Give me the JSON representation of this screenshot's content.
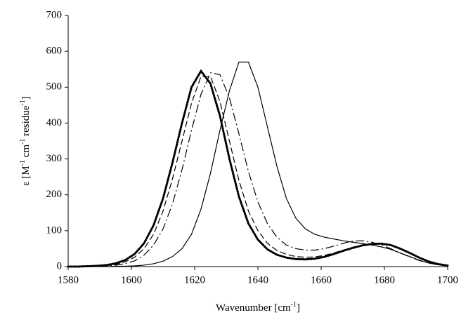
{
  "chart_data": {
    "type": "line",
    "xlabel": [
      "Wavenumber [cm",
      "-1",
      "]"
    ],
    "ylabel": [
      "ε [M",
      "-1",
      " cm",
      "-1",
      " residue",
      "-1",
      "]"
    ],
    "x": [
      1580,
      1583,
      1586,
      1589,
      1592,
      1595,
      1598,
      1601,
      1604,
      1607,
      1610,
      1613,
      1616,
      1619,
      1622,
      1625,
      1628,
      1631,
      1634,
      1637,
      1640,
      1643,
      1646,
      1649,
      1652,
      1655,
      1658,
      1661,
      1664,
      1667,
      1670,
      1673,
      1676,
      1679,
      1682,
      1685,
      1688,
      1691,
      1694,
      1697,
      1700
    ],
    "series": [
      {
        "color": "#000000",
        "dash": "solid",
        "values": [
          0,
          0,
          0,
          0,
          0,
          1,
          1,
          2,
          4,
          8,
          15,
          28,
          50,
          90,
          160,
          260,
          380,
          490,
          570,
          570,
          500,
          390,
          280,
          190,
          135,
          105,
          90,
          82,
          77,
          72,
          68,
          64,
          60,
          55,
          48,
          38,
          28,
          18,
          10,
          5,
          2
        ]
      },
      {
        "color": "#000000",
        "dash": "dash-dot",
        "values": [
          0,
          0,
          0,
          1,
          2,
          4,
          8,
          16,
          32,
          60,
          105,
          175,
          270,
          380,
          480,
          540,
          535,
          470,
          370,
          265,
          180,
          120,
          82,
          60,
          50,
          46,
          46,
          50,
          57,
          65,
          71,
          72,
          68,
          60,
          50,
          38,
          27,
          17,
          10,
          5,
          2
        ]
      },
      {
        "color": "#000000",
        "dash": "dash",
        "values": [
          0,
          0,
          0,
          1,
          3,
          6,
          13,
          26,
          50,
          90,
          155,
          245,
          350,
          455,
          530,
          530,
          460,
          350,
          240,
          155,
          100,
          65,
          45,
          34,
          28,
          26,
          27,
          31,
          38,
          46,
          54,
          60,
          64,
          64,
          59,
          50,
          38,
          26,
          15,
          8,
          3
        ]
      },
      {
        "color": "#000000",
        "dash": "dot",
        "values": [
          0,
          0,
          1,
          2,
          4,
          9,
          18,
          35,
          65,
          115,
          190,
          290,
          400,
          500,
          545,
          510,
          420,
          300,
          195,
          120,
          75,
          48,
          33,
          25,
          21,
          20,
          22,
          27,
          35,
          44,
          52,
          59,
          63,
          64,
          60,
          50,
          38,
          25,
          14,
          7,
          3
        ]
      }
    ],
    "xlim": [
      1580,
      1700
    ],
    "xticks": [
      1580,
      1600,
      1620,
      1640,
      1660,
      1680,
      1700
    ],
    "ylim": [
      0,
      700
    ],
    "yticks": [
      0,
      100,
      200,
      300,
      400,
      500,
      600,
      700
    ],
    "grid": false
  }
}
